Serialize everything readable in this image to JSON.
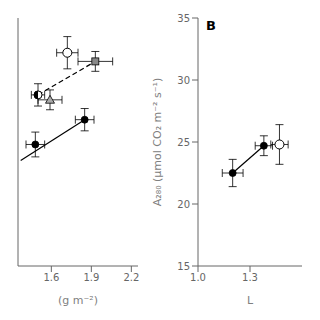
{
  "chart_data": [
    {
      "type": "scatter",
      "x_label": "(g m⁻²)",
      "xlim": [
        1.35,
        2.25
      ],
      "xticks": [
        1.6,
        1.9,
        2.2
      ],
      "ylim": [
        15,
        35
      ],
      "yticks": [
        15,
        20,
        25,
        30,
        35
      ],
      "tick_labels": "x",
      "series": [
        {
          "type": "line",
          "color": "#000000",
          "line_style": "solid",
          "x": [
            1.37,
            1.85
          ],
          "values": [
            23.5,
            26.8
          ]
        },
        {
          "type": "line",
          "color": "#000000",
          "line_style": "dashed",
          "x": [
            1.5,
            1.93
          ],
          "values": [
            28.8,
            31.5
          ]
        },
        {
          "type": "scatter",
          "marker": "circle",
          "color": "#000000",
          "x": [
            1.48,
            1.85
          ],
          "values": [
            24.8,
            26.8
          ],
          "xerr": [
            0.07,
            0.07
          ],
          "yerr": [
            1.0,
            0.9
          ]
        },
        {
          "type": "scatter",
          "marker": "open_circle",
          "color": "#ffffff",
          "x": [
            1.72
          ],
          "values": [
            32.2
          ],
          "xerr": [
            0.08
          ],
          "yerr": [
            1.3
          ]
        },
        {
          "type": "scatter",
          "marker": "square",
          "color": "#888888",
          "x": [
            1.93
          ],
          "values": [
            31.5
          ],
          "xerr": [
            0.13
          ],
          "yerr": [
            0.8
          ]
        },
        {
          "type": "scatter",
          "marker": "half_filled_circle",
          "color": "#ffffff",
          "x": [
            1.5
          ],
          "values": [
            28.8
          ],
          "xerr": [
            0.05
          ],
          "yerr": [
            0.9
          ]
        },
        {
          "type": "scatter",
          "marker": "triangle",
          "color": "#aaaaaa",
          "x": [
            1.59
          ],
          "values": [
            28.4
          ],
          "xerr": [
            0.09
          ],
          "yerr": [
            0.8
          ]
        }
      ]
    },
    {
      "type": "scatter",
      "x_label": "L",
      "y_label": "A₂₈₀ (μmol CO₂ m⁻² s⁻¹)",
      "annotation": "B",
      "xlim": [
        1.0,
        1.6
      ],
      "xticks": [
        {
          "value": 1.0,
          "label": "1.0"
        },
        1.3
      ],
      "ylim": [
        15,
        35
      ],
      "yticks": [
        15,
        20,
        25,
        30,
        35
      ],
      "series": [
        {
          "type": "line",
          "color": "#000000",
          "line_style": "solid",
          "x": [
            1.2,
            1.38
          ],
          "values": [
            22.5,
            24.7
          ]
        },
        {
          "type": "scatter",
          "marker": "circle",
          "color": "#000000",
          "x": [
            1.2,
            1.38
          ],
          "values": [
            22.5,
            24.7
          ],
          "xerr": [
            0.06,
            0.05
          ],
          "yerr": [
            1.1,
            0.8
          ]
        },
        {
          "type": "scatter",
          "marker": "open_circle",
          "color": "#ffffff",
          "x": [
            1.47
          ],
          "values": [
            24.8
          ],
          "xerr": [
            0.05
          ],
          "yerr": [
            1.6
          ]
        }
      ]
    }
  ]
}
